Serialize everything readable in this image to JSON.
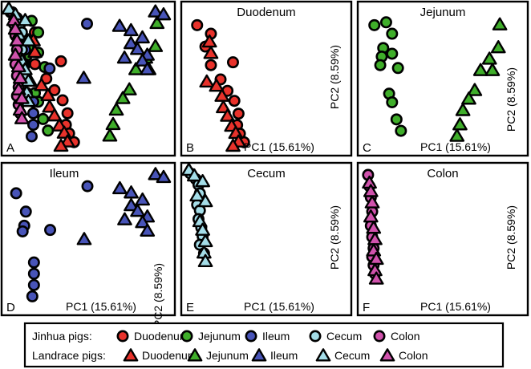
{
  "chart_data": {
    "type": "scatter",
    "xlabel": "PC1 (15.61%)",
    "ylabel": "PC2 (8.59%)",
    "xlim": [
      0,
      100
    ],
    "ylim": [
      0,
      100
    ],
    "colors": {
      "Duodenum": "#e8322b",
      "Jejunum": "#3fae2a",
      "Ileum": "#4854b8",
      "Cecum": "#a4dde8",
      "Colon": "#d052ac"
    },
    "marker_shapes": {
      "Jinhua pigs": "circle",
      "Landrace pigs": "triangle"
    },
    "panels": [
      {
        "letter": "A",
        "title": "",
        "show_xlabel": false,
        "show_ylabel": false,
        "tissues": [
          "Duodenum",
          "Jejunum",
          "Ileum",
          "Cecum",
          "Colon"
        ]
      },
      {
        "letter": "B",
        "title": "Duodenum",
        "show_xlabel": true,
        "show_ylabel": true,
        "tissues": [
          "Duodenum"
        ]
      },
      {
        "letter": "C",
        "title": "Jejunum",
        "show_xlabel": true,
        "show_ylabel": true,
        "tissues": [
          "Jejunum"
        ]
      },
      {
        "letter": "D",
        "title": "Ileum",
        "show_xlabel": true,
        "show_ylabel": true,
        "tissues": [
          "Ileum"
        ]
      },
      {
        "letter": "E",
        "title": "Cecum",
        "show_xlabel": true,
        "show_ylabel": true,
        "tissues": [
          "Cecum"
        ]
      },
      {
        "letter": "F",
        "title": "Colon",
        "show_xlabel": true,
        "show_ylabel": true,
        "tissues": [
          "Colon"
        ]
      }
    ],
    "series": [
      {
        "name": "Duodenum",
        "group": "Jinhua pigs",
        "points": [
          [
            18,
            82
          ],
          [
            14,
            73
          ],
          [
            18,
            60
          ],
          [
            34,
            62
          ],
          [
            30,
            42
          ],
          [
            35,
            35
          ],
          [
            38,
            26
          ],
          [
            37,
            18
          ],
          [
            39,
            12
          ],
          [
            42,
            6
          ],
          [
            8,
            88
          ],
          [
            25,
            50
          ]
        ]
      },
      {
        "name": "Duodenum",
        "group": "Landrace pigs",
        "points": [
          [
            17,
            76
          ],
          [
            18,
            68
          ],
          [
            15,
            48
          ],
          [
            22,
            45
          ],
          [
            26,
            38
          ],
          [
            27,
            30
          ],
          [
            30,
            24
          ],
          [
            33,
            17
          ],
          [
            36,
            12
          ],
          [
            38,
            6
          ],
          [
            34,
            3
          ]
        ]
      },
      {
        "name": "Jejunum",
        "group": "Jinhua pigs",
        "points": [
          [
            8,
            88
          ],
          [
            16,
            90
          ],
          [
            20,
            82
          ],
          [
            14,
            72
          ],
          [
            20,
            68
          ],
          [
            13,
            66
          ],
          [
            24,
            58
          ],
          [
            18,
            40
          ],
          [
            20,
            34
          ],
          [
            23,
            22
          ],
          [
            26,
            14
          ],
          [
            12,
            60
          ]
        ]
      },
      {
        "name": "Jejunum",
        "group": "Landrace pigs",
        "points": [
          [
            93,
            88
          ],
          [
            92,
            72
          ],
          [
            86,
            64
          ],
          [
            80,
            56
          ],
          [
            88,
            56
          ],
          [
            76,
            42
          ],
          [
            72,
            36
          ],
          [
            68,
            28
          ],
          [
            66,
            18
          ],
          [
            64,
            10
          ]
        ]
      },
      {
        "name": "Ileum",
        "group": "Jinhua pigs",
        "points": [
          [
            6,
            83
          ],
          [
            12,
            70
          ],
          [
            11,
            60
          ],
          [
            10,
            56
          ],
          [
            27,
            57
          ],
          [
            50,
            88
          ],
          [
            17,
            34
          ],
          [
            17,
            26
          ],
          [
            17,
            18
          ],
          [
            16,
            10
          ]
        ]
      },
      {
        "name": "Ileum",
        "group": "Landrace pigs",
        "points": [
          [
            92,
            96
          ],
          [
            97,
            94
          ],
          [
            70,
            86
          ],
          [
            77,
            83
          ],
          [
            77,
            74
          ],
          [
            84,
            78
          ],
          [
            81,
            70
          ],
          [
            87,
            66
          ],
          [
            84,
            62
          ],
          [
            87,
            56
          ],
          [
            73,
            64
          ],
          [
            48,
            50
          ]
        ]
      },
      {
        "name": "Cecum",
        "group": "Jinhua pigs",
        "points": [
          [
            3,
            96
          ],
          [
            7,
            92
          ],
          [
            9,
            88
          ],
          [
            10,
            82
          ],
          [
            8,
            74
          ],
          [
            10,
            70
          ],
          [
            9,
            64
          ],
          [
            11,
            58
          ],
          [
            12,
            52
          ],
          [
            10,
            46
          ],
          [
            13,
            40
          ]
        ]
      },
      {
        "name": "Cecum",
        "group": "Landrace pigs",
        "points": [
          [
            2,
            98
          ],
          [
            6,
            94
          ],
          [
            12,
            90
          ],
          [
            8,
            80
          ],
          [
            14,
            76
          ],
          [
            10,
            62
          ],
          [
            12,
            56
          ],
          [
            14,
            48
          ],
          [
            13,
            40
          ],
          [
            14,
            34
          ]
        ]
      },
      {
        "name": "Colon",
        "group": "Jinhua pigs",
        "points": [
          [
            4,
            96
          ],
          [
            5,
            88
          ],
          [
            6,
            80
          ],
          [
            7,
            70
          ],
          [
            6,
            60
          ],
          [
            7,
            52
          ],
          [
            8,
            44
          ],
          [
            7,
            38
          ],
          [
            8,
            32
          ],
          [
            9,
            26
          ]
        ]
      },
      {
        "name": "Colon",
        "group": "Landrace pigs",
        "points": [
          [
            5,
            90
          ],
          [
            6,
            84
          ],
          [
            7,
            76
          ],
          [
            6,
            66
          ],
          [
            8,
            58
          ],
          [
            9,
            50
          ],
          [
            8,
            42
          ],
          [
            10,
            36
          ],
          [
            9,
            28
          ],
          [
            10,
            22
          ]
        ]
      }
    ],
    "legend": {
      "rows": [
        {
          "label": "Jinhua pigs:",
          "shape": "circle",
          "entries": [
            "Duodenum",
            "Jejunum",
            "Ileum",
            "Cecum",
            "Colon"
          ]
        },
        {
          "label": "Landrace pigs:",
          "shape": "triangle",
          "entries": [
            "Duodenum",
            "Jejunum",
            "Ileum",
            "Cecum",
            "Colon"
          ]
        }
      ]
    }
  }
}
